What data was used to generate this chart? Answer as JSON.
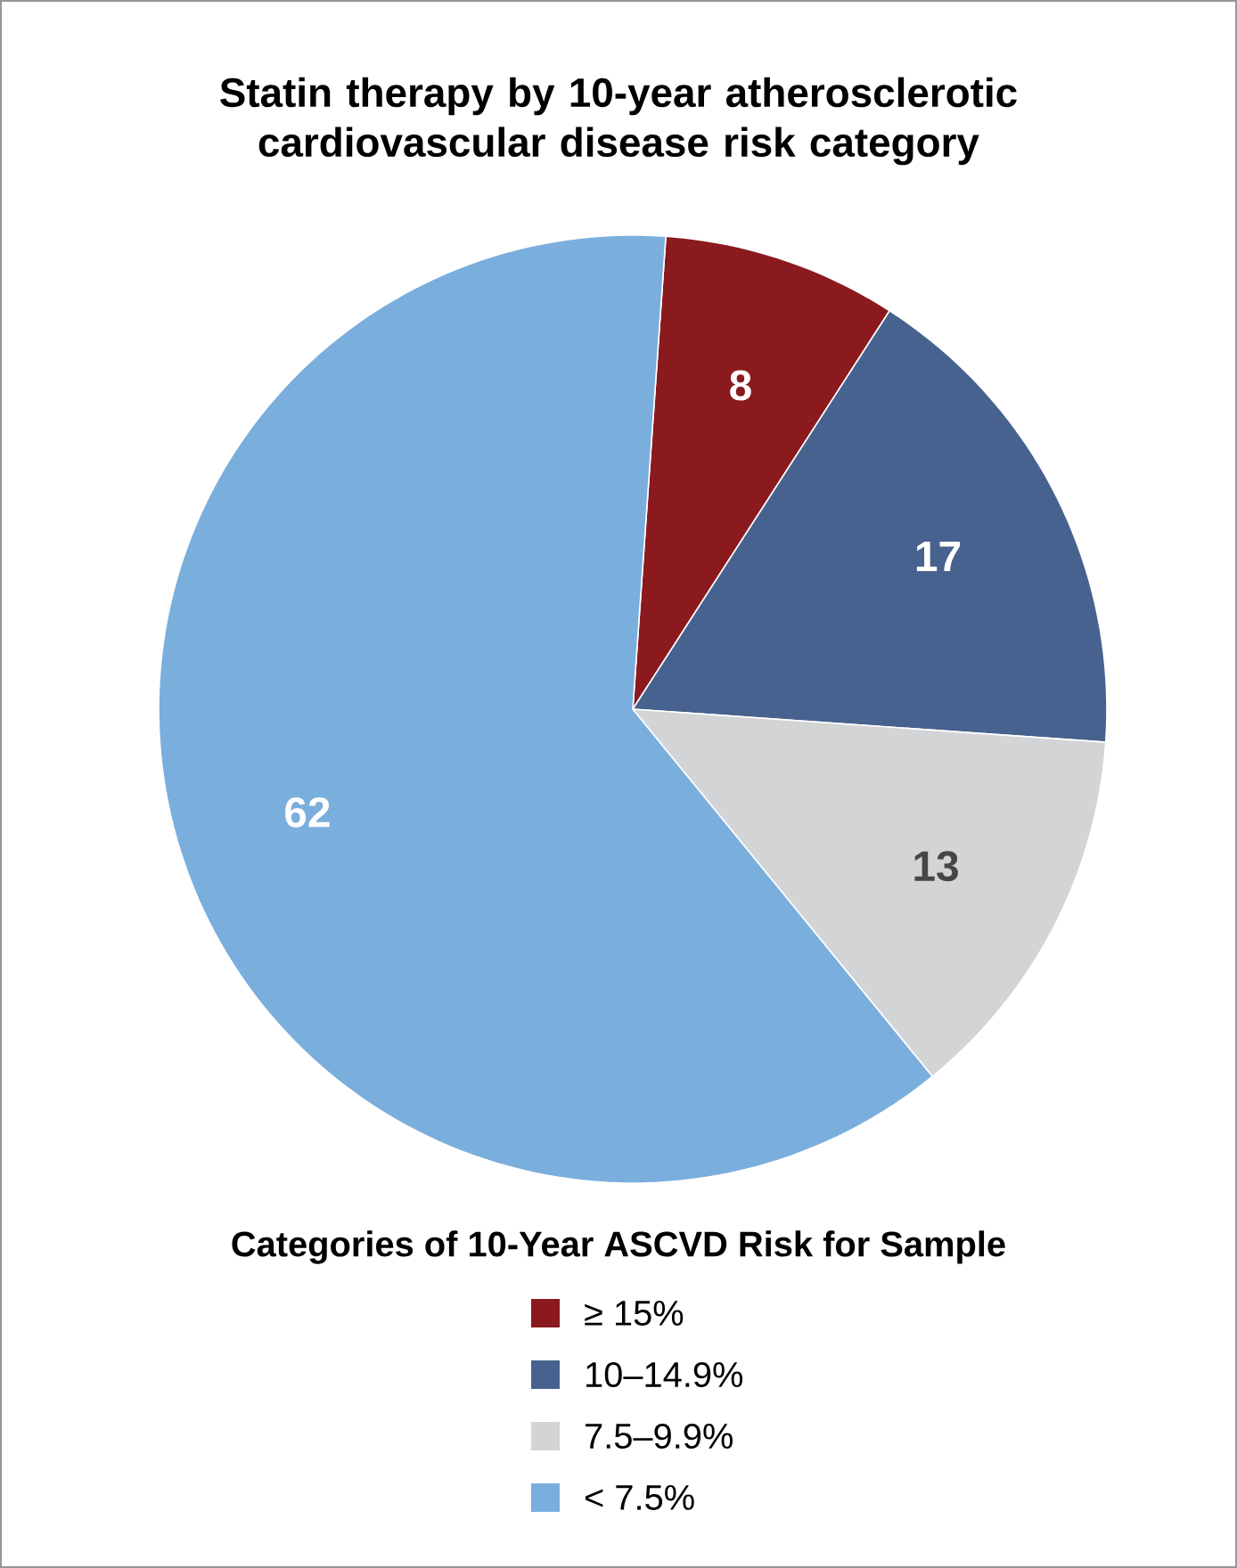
{
  "chart_data": {
    "type": "pie",
    "title": "Statin therapy by 10-year atherosclerotic cardiovascular disease risk category",
    "legend_title": "Categories of 10-Year ASCVD Risk for Sample",
    "legend": "bottom",
    "data_labels": true,
    "categories": [
      "≥ 15%",
      "10–14.9%",
      "7.5–9.9%",
      "< 7.5%"
    ],
    "values": [
      8,
      17,
      13,
      62
    ],
    "colors": [
      "#8b1a1e",
      "#47628f",
      "#d3d4d5",
      "#7aaedd"
    ]
  }
}
